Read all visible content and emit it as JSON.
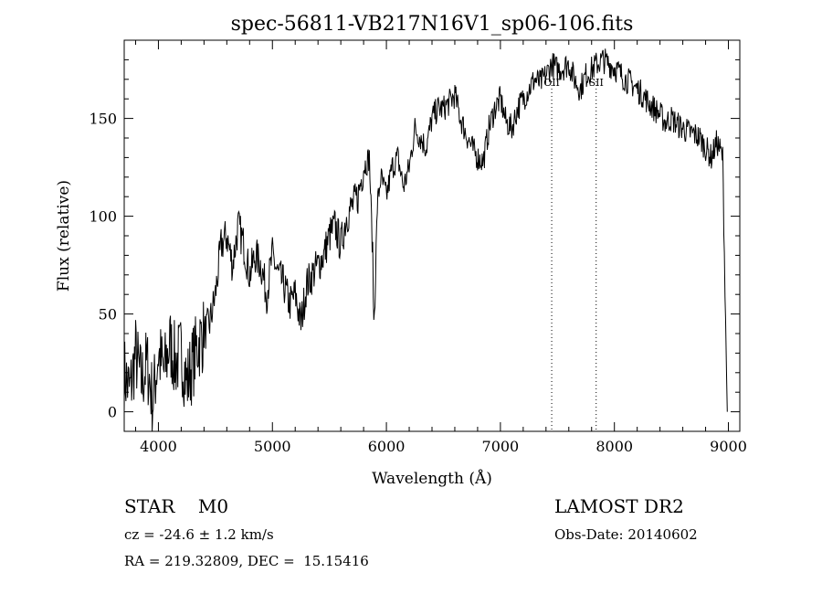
{
  "chart_data": {
    "type": "line",
    "title": "spec-56811-VB217N16V1_sp06-106.fits",
    "xlabel": "Wavelength (Å)",
    "ylabel": "Flux (relative)",
    "xlim": [
      3700,
      9100
    ],
    "ylim": [
      -10,
      190
    ],
    "xticks": [
      4000,
      5000,
      6000,
      7000,
      8000,
      9000
    ],
    "yticks": [
      0,
      50,
      100,
      150
    ],
    "grid": false,
    "line_color": "#000000",
    "series": [
      {
        "x": [
          3700,
          3750,
          3800,
          3850,
          3900,
          3950,
          4000,
          4050,
          4100,
          4150,
          4200,
          4250,
          4300,
          4350,
          4400,
          4450,
          4500,
          4550,
          4600,
          4650,
          4700,
          4750,
          4800,
          4850,
          4900,
          4950,
          5000,
          5050,
          5100,
          5150,
          5200,
          5250,
          5300,
          5350,
          5400,
          5450,
          5500,
          5550,
          5600,
          5650,
          5700,
          5750,
          5800,
          5850,
          5880,
          5890,
          5900,
          5920,
          5950,
          6000,
          6050,
          6100,
          6150,
          6200,
          6250,
          6300,
          6350,
          6400,
          6450,
          6500,
          6550,
          6600,
          6650,
          6700,
          6750,
          6800,
          6850,
          6900,
          6950,
          7000,
          7050,
          7100,
          7150,
          7200,
          7250,
          7300,
          7350,
          7400,
          7450,
          7500,
          7550,
          7600,
          7650,
          7700,
          7750,
          7800,
          7850,
          7900,
          7950,
          8000,
          8050,
          8100,
          8150,
          8200,
          8250,
          8300,
          8350,
          8400,
          8450,
          8500,
          8550,
          8600,
          8650,
          8700,
          8750,
          8800,
          8850,
          8900,
          8950,
          8990
        ],
        "y": [
          20,
          10,
          30,
          15,
          25,
          5,
          30,
          20,
          35,
          25,
          30,
          15,
          25,
          35,
          40,
          45,
          60,
          85,
          90,
          75,
          95,
          85,
          70,
          80,
          75,
          60,
          80,
          70,
          65,
          55,
          60,
          45,
          65,
          70,
          75,
          80,
          90,
          95,
          85,
          100,
          105,
          110,
          125,
          130,
          80,
          45,
          60,
          105,
          120,
          110,
          125,
          130,
          115,
          125,
          145,
          140,
          135,
          150,
          155,
          155,
          158,
          162,
          150,
          142,
          135,
          130,
          128,
          145,
          155,
          160,
          148,
          145,
          155,
          160,
          165,
          170,
          168,
          172,
          178,
          175,
          176,
          178,
          170,
          165,
          172,
          175,
          178,
          180,
          178,
          176,
          173,
          170,
          168,
          165,
          162,
          158,
          155,
          152,
          148,
          150,
          147,
          145,
          143,
          142,
          140,
          135,
          130,
          138,
          130,
          0
        ]
      }
    ],
    "annotations": [
      {
        "label": "OII",
        "x": 7450
      },
      {
        "label": "SII",
        "x": 7840
      }
    ]
  },
  "info": {
    "class_line": "STAR    M0",
    "survey": "LAMOST DR2",
    "cz": "cz = -24.6 ± 1.2 km/s",
    "obs_date": "Obs-Date: 20140602",
    "coords": "RA = 219.32809, DEC =  15.15416"
  }
}
